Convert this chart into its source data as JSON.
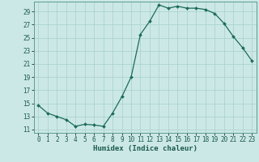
{
  "xlabel": "Humidex (Indice chaleur)",
  "ylabel": "",
  "background_color": "#cce8e6",
  "grid_color": "#aad4d0",
  "line_color": "#1a6b5a",
  "marker_color": "#1a6b5a",
  "xlim": [
    -0.5,
    23.5
  ],
  "ylim": [
    10.5,
    30.5
  ],
  "yticks": [
    11,
    13,
    15,
    17,
    19,
    21,
    23,
    25,
    27,
    29
  ],
  "xticks": [
    0,
    1,
    2,
    3,
    4,
    5,
    6,
    7,
    8,
    9,
    10,
    11,
    12,
    13,
    14,
    15,
    16,
    17,
    18,
    19,
    20,
    21,
    22,
    23
  ],
  "hours": [
    0,
    1,
    2,
    3,
    4,
    5,
    6,
    7,
    8,
    9,
    10,
    11,
    12,
    13,
    14,
    15,
    16,
    17,
    18,
    19,
    20,
    21,
    22,
    23
  ],
  "values": [
    14.7,
    13.5,
    13.0,
    12.5,
    11.5,
    11.8,
    11.7,
    11.5,
    13.5,
    16.0,
    19.0,
    25.5,
    27.5,
    30.0,
    29.5,
    29.8,
    29.5,
    29.5,
    29.3,
    28.7,
    27.2,
    25.2,
    23.5,
    21.5
  ]
}
